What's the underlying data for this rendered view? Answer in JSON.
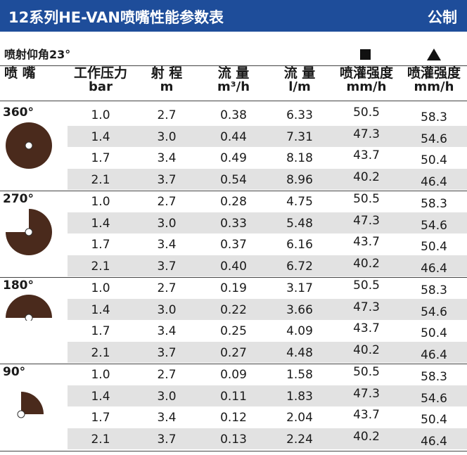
{
  "title": "12系列HE-VAN喷嘴性能参数表",
  "unit_system": "公制",
  "angle_label": "喷射仰角23°",
  "columns": [
    {
      "line1": "喷 嘴",
      "line2": ""
    },
    {
      "line1": "工作压力",
      "line2": "bar"
    },
    {
      "line1": "射 程",
      "line2": "m"
    },
    {
      "line1": "流 量",
      "line2": "m³/h"
    },
    {
      "line1": "流 量",
      "line2": "l/m"
    },
    {
      "line1": "喷灌强度",
      "line2": "mm/h"
    },
    {
      "line1": "喷灌强度",
      "line2": "mm/h"
    }
  ],
  "colors": {
    "header_bg": "#1e4d9a",
    "icon_fill": "#4a2a1c",
    "row_shade": "#e2e2e2"
  },
  "groups": [
    {
      "nozzle": "360°",
      "icon": "full-circle-icon",
      "rows": [
        [
          "1.0",
          "2.7",
          "0.38",
          "6.33",
          "50.5",
          "58.3"
        ],
        [
          "1.4",
          "3.0",
          "0.44",
          "7.31",
          "47.3",
          "54.6"
        ],
        [
          "1.7",
          "3.4",
          "0.49",
          "8.18",
          "43.7",
          "50.4"
        ],
        [
          "2.1",
          "3.7",
          "0.54",
          "8.96",
          "40.2",
          "46.4"
        ]
      ]
    },
    {
      "nozzle": "270°",
      "icon": "three-quarter-circle-icon",
      "rows": [
        [
          "1.0",
          "2.7",
          "0.28",
          "4.75",
          "50.5",
          "58.3"
        ],
        [
          "1.4",
          "3.0",
          "0.33",
          "5.48",
          "47.3",
          "54.6"
        ],
        [
          "1.7",
          "3.4",
          "0.37",
          "6.16",
          "43.7",
          "50.4"
        ],
        [
          "2.1",
          "3.7",
          "0.40",
          "6.72",
          "40.2",
          "46.4"
        ]
      ]
    },
    {
      "nozzle": "180°",
      "icon": "half-circle-icon",
      "rows": [
        [
          "1.0",
          "2.7",
          "0.19",
          "3.17",
          "50.5",
          "58.3"
        ],
        [
          "1.4",
          "3.0",
          "0.22",
          "3.66",
          "47.3",
          "54.6"
        ],
        [
          "1.7",
          "3.4",
          "0.25",
          "4.09",
          "43.7",
          "50.4"
        ],
        [
          "2.1",
          "3.7",
          "0.27",
          "4.48",
          "40.2",
          "46.4"
        ]
      ]
    },
    {
      "nozzle": "90°",
      "icon": "quarter-circle-icon",
      "rows": [
        [
          "1.0",
          "2.7",
          "0.09",
          "1.58",
          "50.5",
          "58.3"
        ],
        [
          "1.4",
          "3.0",
          "0.11",
          "1.83",
          "47.3",
          "54.6"
        ],
        [
          "1.7",
          "3.4",
          "0.12",
          "2.04",
          "43.7",
          "50.4"
        ],
        [
          "2.1",
          "3.7",
          "0.13",
          "2.24",
          "40.2",
          "46.4"
        ]
      ]
    }
  ]
}
